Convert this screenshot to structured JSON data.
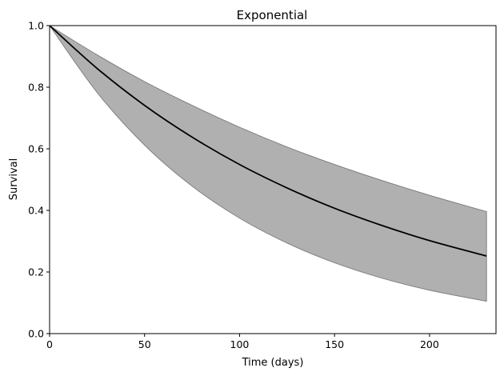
{
  "chart_data": {
    "type": "line",
    "title": "Exponential",
    "xlabel": "Time (days)",
    "ylabel": "Survival",
    "xlim": [
      0,
      235
    ],
    "ylim": [
      0.0,
      1.0
    ],
    "xticks": [
      "0",
      "50",
      "100",
      "150",
      "200"
    ],
    "xtick_values": [
      0,
      50,
      100,
      150,
      200
    ],
    "yticks": [
      "0.0",
      "0.2",
      "0.4",
      "0.6",
      "0.8",
      "1.0"
    ],
    "ytick_values": [
      0.0,
      0.2,
      0.4,
      0.6,
      0.8,
      1.0
    ],
    "grid": false,
    "series": [
      {
        "x": [
          0,
          25,
          50,
          75,
          100,
          125,
          150,
          175,
          200,
          230
        ],
        "y": [
          1.0,
          0.861,
          0.741,
          0.638,
          0.549,
          0.473,
          0.407,
          0.351,
          0.302,
          0.252
        ],
        "color": "#000000"
      }
    ],
    "band": {
      "x": [
        0,
        25,
        50,
        75,
        100,
        125,
        150,
        175,
        200,
        230
      ],
      "upper": [
        1.0,
        0.905,
        0.818,
        0.741,
        0.67,
        0.606,
        0.549,
        0.497,
        0.449,
        0.396
      ],
      "lower": [
        1.0,
        0.783,
        0.612,
        0.479,
        0.375,
        0.294,
        0.23,
        0.18,
        0.141,
        0.105
      ],
      "fill": "#b0b0b0",
      "edge": "#808080"
    }
  }
}
